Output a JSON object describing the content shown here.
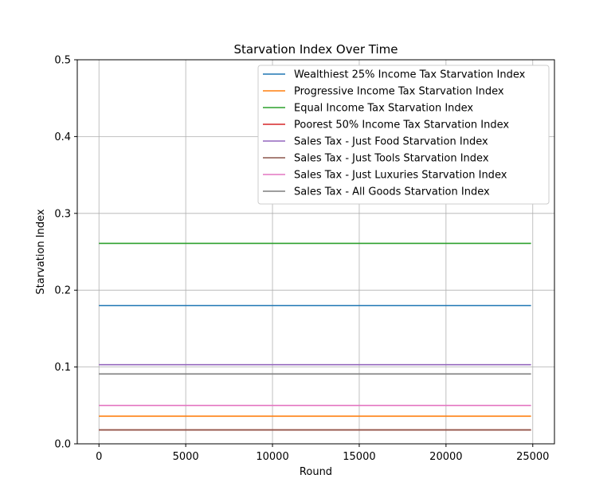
{
  "chart_data": {
    "type": "line",
    "title": "Starvation Index Over Time",
    "xlabel": "Round",
    "ylabel": "Starvation Index",
    "xlim": [
      -1250,
      26250
    ],
    "ylim": [
      0,
      0.5
    ],
    "x_ticks": [
      0,
      5000,
      10000,
      15000,
      20000,
      25000
    ],
    "x_tick_labels": [
      "0",
      "5000",
      "10000",
      "15000",
      "20000",
      "25000"
    ],
    "y_ticks": [
      0,
      0.1,
      0.2,
      0.3,
      0.4,
      0.5
    ],
    "y_tick_labels": [
      "0.0",
      "0.1",
      "0.2",
      "0.3",
      "0.4",
      "0.5"
    ],
    "grid": true,
    "legend_position": "top-right",
    "series": [
      {
        "name": "Wealthiest 25% Income Tax Starvation Index",
        "color": "#1f77b4",
        "x": [
          0,
          24900
        ],
        "y": [
          0.18,
          0.18
        ]
      },
      {
        "name": "Progressive Income Tax Starvation Index",
        "color": "#ff7f0e",
        "x": [
          0,
          24900
        ],
        "y": [
          0.036,
          0.036
        ]
      },
      {
        "name": "Equal Income Tax Starvation Index",
        "color": "#2ca02c",
        "x": [
          0,
          24900
        ],
        "y": [
          0.261,
          0.261
        ]
      },
      {
        "name": "Poorest 50% Income Tax Starvation Index",
        "color": "#d62728",
        "x": [
          0,
          24900
        ],
        "y": [
          0.018,
          0.018
        ]
      },
      {
        "name": "Sales Tax - Just Food Starvation Index",
        "color": "#9467bd",
        "x": [
          0,
          24900
        ],
        "y": [
          0.103,
          0.103
        ]
      },
      {
        "name": "Sales Tax - Just Tools Starvation Index",
        "color": "#8c564b",
        "x": [
          0,
          24900
        ],
        "y": [
          0.018,
          0.018
        ]
      },
      {
        "name": "Sales Tax - Just Luxuries Starvation Index",
        "color": "#e377c2",
        "x": [
          0,
          24900
        ],
        "y": [
          0.05,
          0.05
        ]
      },
      {
        "name": "Sales Tax - All Goods Starvation Index",
        "color": "#7f7f7f",
        "x": [
          0,
          24900
        ],
        "y": [
          0.091,
          0.091
        ]
      }
    ]
  }
}
